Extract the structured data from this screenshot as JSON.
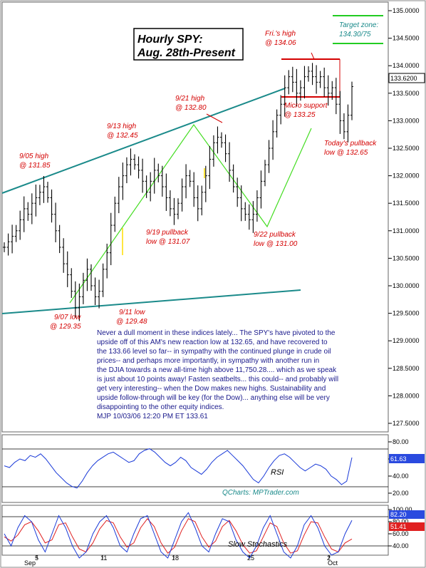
{
  "title": {
    "line1": "Hourly SPY:",
    "line2": "Aug. 28th-Present"
  },
  "target_zone": {
    "label": "Target zone:",
    "value": "134.30/75"
  },
  "annotations": [
    {
      "key": "a1",
      "line1": "9/05 high",
      "line2": "@ 131.85"
    },
    {
      "key": "a2",
      "line1": "9/13 high",
      "line2": "@ 132.45"
    },
    {
      "key": "a3",
      "line1": "9/21 high",
      "line2": "@ 132.80"
    },
    {
      "key": "a4",
      "line1": "Fri.'s high",
      "line2": "@ 134.06"
    },
    {
      "key": "a5",
      "line1": "Micro support",
      "line2": "@ 133.25"
    },
    {
      "key": "a6",
      "line1": "Today's pullback",
      "line2": "low @ 132.65"
    },
    {
      "key": "a7",
      "line1": "9/19 pullback",
      "line2": "low @ 131.07"
    },
    {
      "key": "a8",
      "line1": "9/22 pullback",
      "line2": "low @ 131.00"
    },
    {
      "key": "a9",
      "line1": "9/07 low",
      "line2": "@ 129.35"
    },
    {
      "key": "a10",
      "line1": "9/11 low",
      "line2": "@ 129.48"
    }
  ],
  "commentary": [
    "Never a dull moment in these indices lately... The SPY's have pivoted to the",
    "upside off of this AM's new reaction low at 132.65, and have recovered to",
    "the 133.66 level so far-- in sympathy with the continued plunge in crude oil",
    "prices-- and perhaps more importantly, in sympathy with another run in",
    "the DJIA towards a new all-time high above 11,750.28.... which as we speak",
    "is just about 10 points away!  Fasten seatbelts... this could-- and probably will",
    "get very interesting-- when the Dow makes new highs.  Sustainability and",
    "upside follow-through will be key (for the Dow)... anything else will be very",
    "disappointing to the other equity indices.",
    "MJP  10/03/06  12:20 PM ET 133.61"
  ],
  "price_box": "133.6200",
  "rsi_label": "RSI",
  "rsi_box": "61.63",
  "stoch_label": "Slow Stochastics",
  "stoch_boxes": [
    "82.20",
    "51.41"
  ],
  "qcharts": "QCharts: MPTrader.com",
  "chart_data": {
    "type": "ohlc",
    "x_ticks": [
      "5",
      "11",
      "18",
      "25",
      "2"
    ],
    "x_month_labels": [
      "Sep",
      "Oct"
    ],
    "y_ticks_price": [
      "135.0000",
      "134.5000",
      "134.0000",
      "133.5000",
      "133.0000",
      "132.5000",
      "132.0000",
      "131.5000",
      "131.0000",
      "130.5000",
      "130.0000",
      "129.5000",
      "129.0000",
      "128.5000",
      "128.0000",
      "127.5000"
    ],
    "y_ticks_rsi": [
      "80.00",
      "60.00",
      "40.00",
      "20.00"
    ],
    "y_ticks_stoch": [
      "100.00",
      "80.00",
      "60.00",
      "40.00"
    ],
    "ylim_price": [
      127.1,
      135.0
    ],
    "key_points": [
      {
        "label": "9/05 high",
        "value": 131.85
      },
      {
        "label": "9/07 low",
        "value": 129.35
      },
      {
        "label": "9/11 low",
        "value": 129.48
      },
      {
        "label": "9/13 high",
        "value": 132.45
      },
      {
        "label": "9/19 pullback low",
        "value": 131.07
      },
      {
        "label": "9/21 high",
        "value": 132.8
      },
      {
        "label": "9/22 pullback low",
        "value": 131.0
      },
      {
        "label": "Fri.'s high",
        "value": 134.06
      },
      {
        "label": "Micro support",
        "value": 133.25
      },
      {
        "label": "Today's pullback low",
        "value": 132.65
      },
      {
        "label": "Last",
        "value": 133.62
      }
    ],
    "closes": [
      130.7,
      130.8,
      130.9,
      131.0,
      131.2,
      131.4,
      131.3,
      131.5,
      131.6,
      131.7,
      131.8,
      131.6,
      131.3,
      131.0,
      130.7,
      130.4,
      130.2,
      129.9,
      129.6,
      129.8,
      130.1,
      130.3,
      130.0,
      129.8,
      129.9,
      130.3,
      130.6,
      131.1,
      131.5,
      131.8,
      132.0,
      132.2,
      132.3,
      132.2,
      132.1,
      131.9,
      131.7,
      131.9,
      132.1,
      132.0,
      131.8,
      131.6,
      131.4,
      131.3,
      131.5,
      131.8,
      132.0,
      131.9,
      131.6,
      131.4,
      131.7,
      132.0,
      132.3,
      132.6,
      132.7,
      132.6,
      132.4,
      132.1,
      131.8,
      131.6,
      131.4,
      131.3,
      131.2,
      131.3,
      131.6,
      131.9,
      132.2,
      132.5,
      132.8,
      133.1,
      133.3,
      133.6,
      133.8,
      133.7,
      133.5,
      133.6,
      133.8,
      133.9,
      133.8,
      133.7,
      133.8,
      133.6,
      133.5,
      133.6,
      133.3,
      133.0,
      132.8,
      133.1,
      133.62
    ],
    "rsi": [
      52,
      50,
      56,
      60,
      58,
      64,
      62,
      66,
      60,
      52,
      44,
      38,
      32,
      28,
      26,
      34,
      44,
      52,
      58,
      62,
      66,
      68,
      64,
      60,
      56,
      58,
      66,
      70,
      72,
      68,
      62,
      56,
      52,
      56,
      62,
      58,
      50,
      46,
      42,
      48,
      56,
      62,
      66,
      70,
      64,
      58,
      52,
      44,
      36,
      32,
      40,
      50,
      58,
      64,
      66,
      62,
      56,
      50,
      46,
      50,
      54,
      52,
      48,
      40,
      36,
      30,
      34,
      61.63
    ],
    "stoch_k": [
      60,
      40,
      70,
      90,
      80,
      50,
      30,
      60,
      90,
      70,
      40,
      20,
      30,
      60,
      80,
      90,
      70,
      40,
      30,
      60,
      85,
      90,
      60,
      30,
      20,
      50,
      80,
      95,
      70,
      40,
      30,
      60,
      85,
      80,
      50,
      30,
      20,
      40,
      70,
      90,
      60,
      30,
      20,
      40,
      75,
      90,
      70,
      40,
      25,
      30,
      60,
      82.2
    ],
    "stoch_d": [
      55,
      48,
      58,
      75,
      80,
      65,
      45,
      50,
      75,
      78,
      55,
      35,
      30,
      45,
      68,
      82,
      78,
      55,
      38,
      45,
      70,
      85,
      72,
      45,
      28,
      38,
      65,
      85,
      80,
      55,
      38,
      48,
      72,
      82,
      65,
      42,
      28,
      32,
      55,
      78,
      72,
      45,
      28,
      32,
      58,
      80,
      78,
      55,
      35,
      30,
      45,
      51.41
    ]
  }
}
